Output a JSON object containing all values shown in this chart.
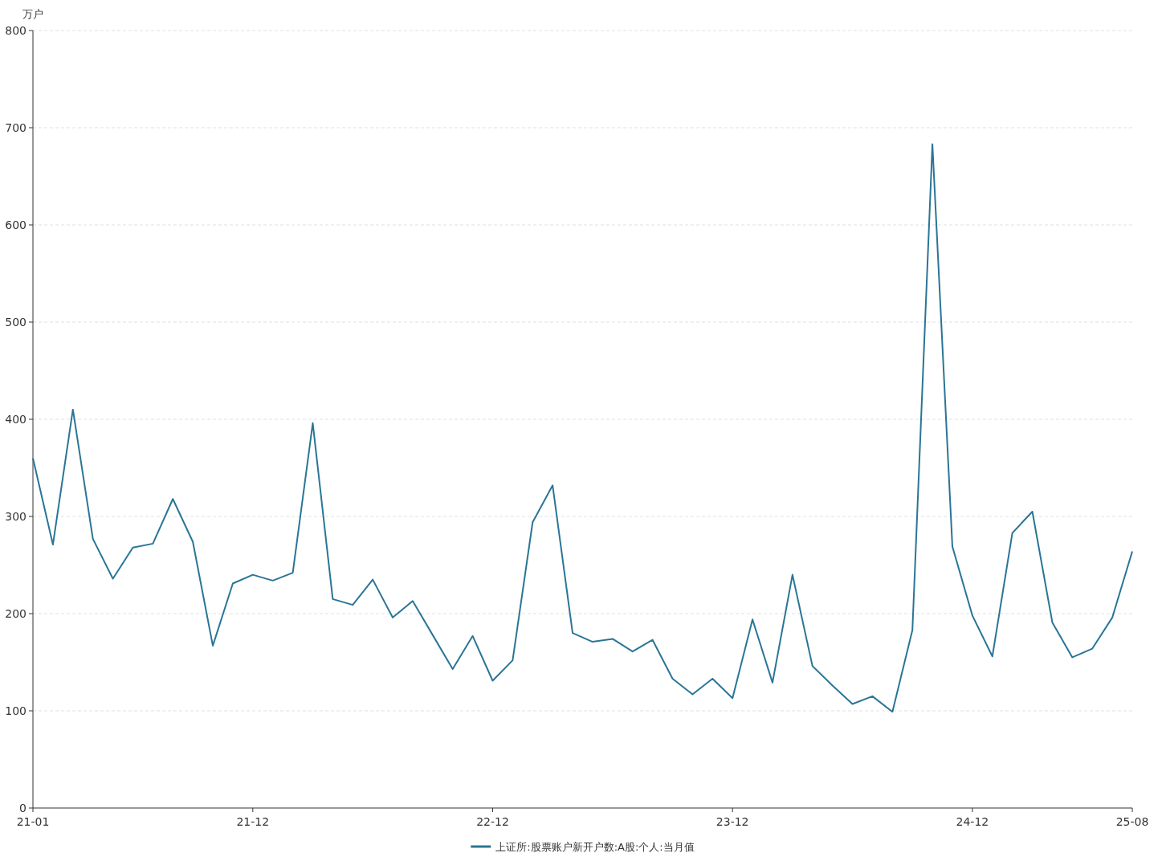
{
  "chart_data": {
    "type": "line",
    "ylabel": "万户",
    "categories": [
      "21-01",
      null,
      null,
      null,
      null,
      null,
      null,
      null,
      null,
      null,
      null,
      "21-12",
      null,
      null,
      null,
      null,
      null,
      null,
      null,
      null,
      null,
      null,
      null,
      "22-12",
      null,
      null,
      null,
      null,
      null,
      null,
      null,
      null,
      null,
      null,
      null,
      "23-12",
      null,
      null,
      null,
      null,
      null,
      null,
      null,
      null,
      null,
      null,
      null,
      "24-12",
      null,
      null,
      null,
      null,
      null,
      null,
      null,
      "25-08"
    ],
    "series": [
      {
        "name": "上证所:股票账户新开户数:A股:个人:当月值",
        "color": "#2a7596",
        "values": [
          360,
          271,
          410,
          277,
          236,
          268,
          272,
          318,
          274,
          167,
          231,
          240,
          234,
          242,
          396,
          215,
          209,
          235,
          196,
          213,
          178,
          143,
          177,
          131,
          152,
          294,
          332,
          180,
          171,
          174,
          161,
          173,
          133,
          117,
          133,
          113,
          194,
          129,
          240,
          146,
          126,
          107,
          115,
          99,
          183,
          683,
          269,
          198,
          156,
          283,
          305,
          191,
          155,
          164,
          196,
          264
        ]
      }
    ],
    "ylim": [
      0,
      800
    ],
    "yticks": [
      0,
      100,
      200,
      300,
      400,
      500,
      600,
      700,
      800
    ],
    "grid": "y",
    "legend": "bottom",
    "marker": "none",
    "line_style": "solid"
  }
}
